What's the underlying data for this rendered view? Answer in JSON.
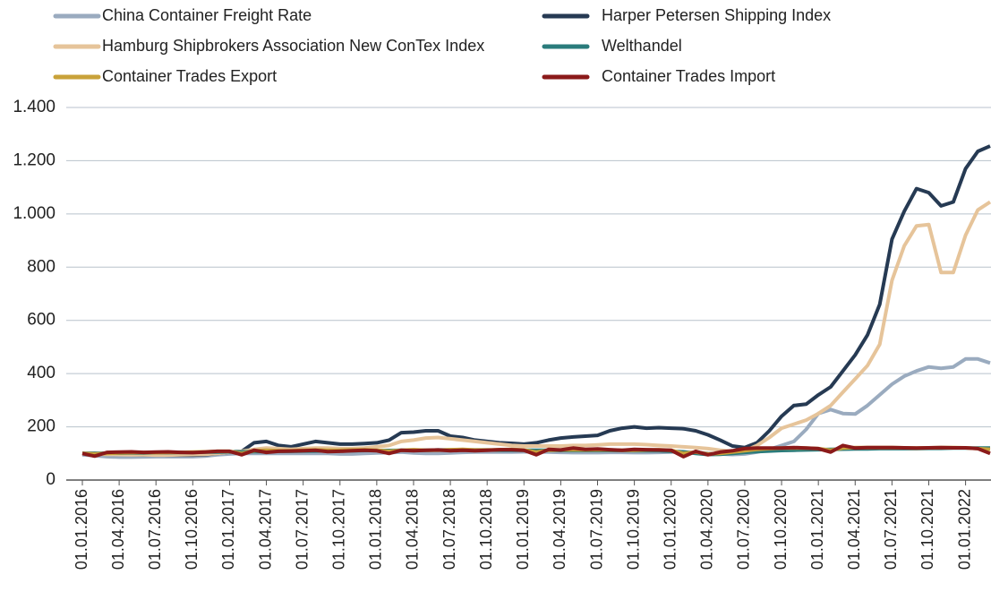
{
  "chart_data": {
    "type": "line",
    "categories": [
      "01.01.2016",
      null,
      null,
      "01.04.2016",
      null,
      null,
      "01.07.2016",
      null,
      null,
      "01.10.2016",
      null,
      null,
      "01.01.2017",
      null,
      null,
      "01.04.2017",
      null,
      null,
      "01.07.2017",
      null,
      null,
      "01.10.2017",
      null,
      null,
      "01.01.2018",
      null,
      null,
      "01.04.2018",
      null,
      null,
      "01.07.2018",
      null,
      null,
      "01.10.2018",
      null,
      null,
      "01.01.2019",
      null,
      null,
      "01.04.2019",
      null,
      null,
      "01.07.2019",
      null,
      null,
      "01.10.2019",
      null,
      null,
      "01.01.2020",
      null,
      null,
      "01.04.2020",
      null,
      null,
      "01.07.2020",
      null,
      null,
      "01.10.2020",
      null,
      null,
      "01.01.2021",
      null,
      null,
      "01.04.2021",
      null,
      null,
      "01.07.2021",
      null,
      null,
      "01.10.2021",
      null,
      null,
      "01.01.2022",
      null,
      null
    ],
    "series": [
      {
        "name": "China Container Freight Rate",
        "color": "#9aabbf",
        "values": [
          95,
          92,
          88,
          86,
          86,
          87,
          88,
          88,
          88,
          88,
          90,
          95,
          98,
          100,
          100,
          100,
          100,
          100,
          100,
          100,
          100,
          98,
          98,
          100,
          102,
          103,
          105,
          102,
          100,
          100,
          102,
          104,
          105,
          105,
          105,
          105,
          106,
          106,
          105,
          104,
          103,
          103,
          103,
          104,
          104,
          103,
          103,
          104,
          105,
          105,
          104,
          100,
          98,
          96,
          98,
          105,
          115,
          130,
          145,
          190,
          250,
          265,
          250,
          248,
          280,
          320,
          360,
          390,
          410,
          425,
          420,
          425,
          455,
          455,
          440
        ]
      },
      {
        "name": "Harper Petersen Shipping Index",
        "color": "#263a53",
        "values": [
          100,
          100,
          98,
          97,
          96,
          95,
          95,
          94,
          94,
          94,
          95,
          100,
          105,
          108,
          140,
          145,
          130,
          125,
          135,
          145,
          140,
          135,
          135,
          137,
          140,
          150,
          178,
          180,
          185,
          185,
          165,
          160,
          150,
          145,
          140,
          138,
          135,
          140,
          150,
          158,
          162,
          165,
          168,
          185,
          195,
          200,
          195,
          197,
          195,
          193,
          185,
          170,
          150,
          128,
          122,
          140,
          185,
          240,
          280,
          285,
          320,
          350,
          410,
          470,
          545,
          660,
          905,
          1010,
          1095,
          1080,
          1030,
          1045,
          1170,
          1235,
          1255
        ]
      },
      {
        "name": "Hamburg Shipbrokers Association New ConTex Index",
        "color": "#e6c49a",
        "values": [
          100,
          98,
          97,
          96,
          95,
          95,
          94,
          94,
          95,
          96,
          97,
          100,
          105,
          108,
          115,
          120,
          118,
          115,
          118,
          120,
          120,
          118,
          118,
          120,
          125,
          130,
          145,
          150,
          158,
          160,
          155,
          150,
          145,
          140,
          135,
          130,
          128,
          128,
          128,
          128,
          130,
          130,
          132,
          135,
          135,
          135,
          133,
          130,
          128,
          125,
          122,
          118,
          112,
          108,
          110,
          130,
          160,
          195,
          210,
          225,
          250,
          280,
          330,
          380,
          430,
          510,
          750,
          880,
          955,
          960,
          780,
          780,
          920,
          1015,
          1045
        ]
      },
      {
        "name": "Welthandel",
        "color": "#2a7b7b",
        "values": [
          100,
          100,
          101,
          101,
          102,
          102,
          103,
          103,
          104,
          104,
          105,
          105,
          106,
          106,
          107,
          107,
          108,
          108,
          109,
          109,
          110,
          110,
          110,
          111,
          111,
          111,
          112,
          112,
          112,
          113,
          113,
          113,
          113,
          113,
          112,
          112,
          112,
          112,
          112,
          111,
          111,
          111,
          111,
          111,
          111,
          110,
          110,
          110,
          108,
          106,
          100,
          96,
          97,
          100,
          104,
          107,
          109,
          111,
          112,
          113,
          114,
          115,
          116,
          117,
          117,
          118,
          118,
          118,
          118,
          119,
          119,
          120,
          120,
          120,
          120
        ]
      },
      {
        "name": "Container Trades Export",
        "color": "#c9a23a",
        "values": [
          100,
          98,
          100,
          102,
          103,
          104,
          103,
          104,
          104,
          105,
          106,
          108,
          108,
          100,
          110,
          112,
          110,
          110,
          112,
          113,
          112,
          112,
          113,
          114,
          112,
          108,
          112,
          114,
          112,
          112,
          114,
          115,
          113,
          113,
          114,
          115,
          113,
          105,
          112,
          113,
          114,
          113,
          114,
          113,
          112,
          112,
          113,
          114,
          112,
          100,
          105,
          98,
          100,
          105,
          110,
          115,
          118,
          120,
          120,
          120,
          118,
          112,
          120,
          122,
          122,
          122,
          122,
          121,
          120,
          121,
          122,
          122,
          121,
          118,
          115
        ]
      },
      {
        "name": "Container Trades Import",
        "color": "#8b1a1a",
        "values": [
          100,
          90,
          104,
          105,
          106,
          104,
          105,
          106,
          104,
          103,
          105,
          108,
          108,
          95,
          112,
          104,
          108,
          109,
          110,
          112,
          107,
          108,
          110,
          112,
          110,
          100,
          112,
          110,
          112,
          113,
          110,
          112,
          110,
          112,
          114,
          114,
          112,
          95,
          115,
          113,
          120,
          115,
          117,
          114,
          112,
          115,
          114,
          113,
          112,
          88,
          108,
          95,
          105,
          110,
          118,
          120,
          120,
          120,
          122,
          120,
          118,
          105,
          130,
          120,
          122,
          122,
          122,
          121,
          120,
          121,
          122,
          121,
          121,
          118,
          100
        ]
      }
    ],
    "ylim": [
      0,
      1400
    ],
    "yticks": [
      0,
      200,
      400,
      600,
      800,
      {
        "value": 1000,
        "label": "1.000"
      },
      {
        "value": 1200,
        "label": "1.200"
      },
      {
        "value": 1400,
        "label": "1.400"
      }
    ],
    "grid": true
  }
}
